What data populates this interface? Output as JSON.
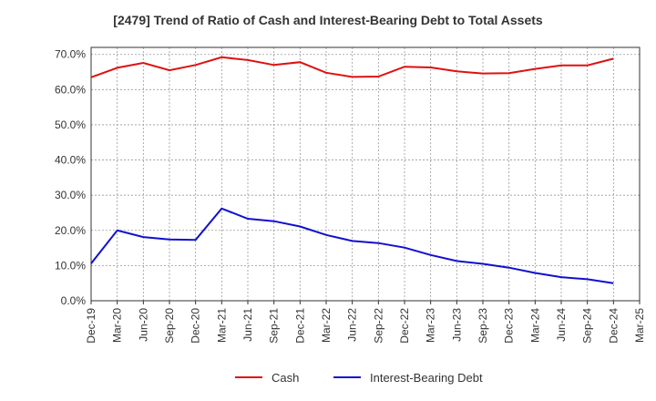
{
  "chart_data": {
    "type": "line",
    "title": "[2479]  Trend of Ratio of Cash and Interest-Bearing Debt to Total Assets",
    "xlabel": "",
    "ylabel": "",
    "ylim": [
      0,
      72
    ],
    "yticks": [
      0,
      10,
      20,
      30,
      40,
      50,
      60,
      70
    ],
    "ytick_labels": [
      "0.0%",
      "10.0%",
      "20.0%",
      "30.0%",
      "40.0%",
      "50.0%",
      "60.0%",
      "70.0%"
    ],
    "x_labels": [
      "Dec-19",
      "Mar-20",
      "Jun-20",
      "Sep-20",
      "Dec-20",
      "Mar-21",
      "Jun-21",
      "Sep-21",
      "Dec-21",
      "Mar-22",
      "Jun-22",
      "Sep-22",
      "Dec-22",
      "Mar-23",
      "Jun-23",
      "Sep-23",
      "Dec-23",
      "Mar-24",
      "Jun-24",
      "Sep-24",
      "Dec-24",
      "Mar-25"
    ],
    "grid": true,
    "legend_position": "bottom",
    "series": [
      {
        "name": "Cash",
        "color": "#e01010",
        "values": [
          63.5,
          66.2,
          67.6,
          65.5,
          67.0,
          69.2,
          68.4,
          67.0,
          67.8,
          64.8,
          63.6,
          63.7,
          66.5,
          66.3,
          65.2,
          64.6,
          64.7,
          65.9,
          66.9,
          66.9,
          68.8,
          null
        ]
      },
      {
        "name": "Interest-Bearing Debt",
        "color": "#1010d0",
        "values": [
          10.6,
          20.0,
          18.1,
          17.4,
          17.3,
          26.2,
          23.3,
          22.6,
          21.1,
          18.7,
          17.0,
          16.4,
          15.1,
          13.0,
          11.3,
          10.5,
          9.4,
          7.9,
          6.7,
          6.1,
          5.0,
          null
        ]
      }
    ]
  }
}
